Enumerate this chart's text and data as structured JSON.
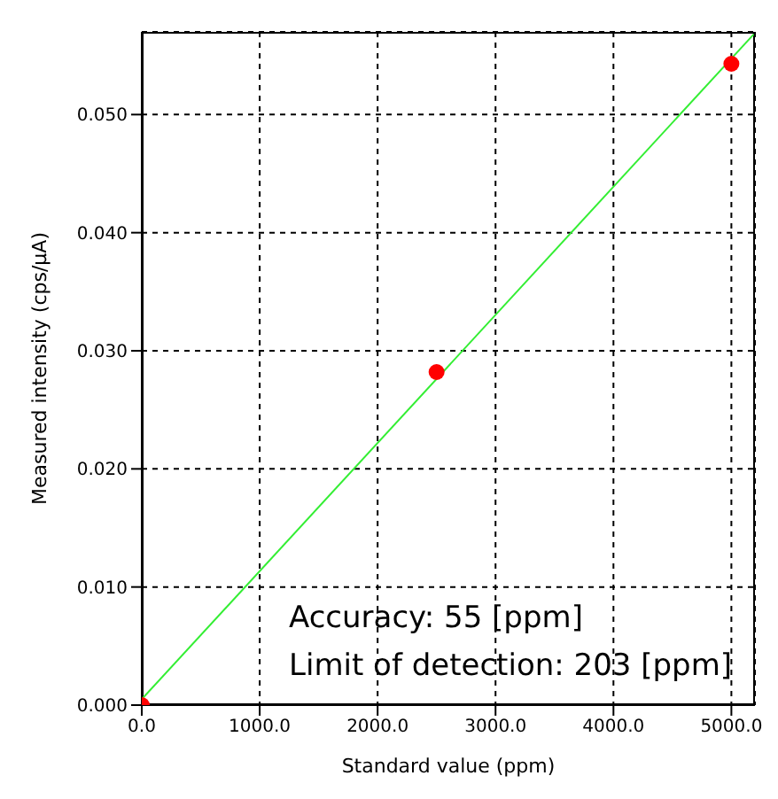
{
  "chart_data": {
    "type": "scatter",
    "xlabel": "Standard value (ppm)",
    "ylabel": "Measured intensity (cps/μA)",
    "series": [
      {
        "color": "#ff0000",
        "x": [
          0,
          2500,
          5000
        ],
        "values": [
          0,
          0.0282,
          0.0543
        ],
        "marker": "circle"
      },
      {
        "type": "line",
        "color": "#33ee33",
        "x": [
          0,
          5190
        ],
        "values": [
          0.0005,
          0.0568
        ],
        "marker": "none"
      }
    ],
    "xlim": [
      0,
      5200
    ],
    "xticks": [
      {
        "value": 0,
        "label": "0.0"
      },
      {
        "value": 1000,
        "label": "1000.0"
      },
      {
        "value": 2000,
        "label": "2000.0"
      },
      {
        "value": 3000,
        "label": "3000.0"
      },
      {
        "value": 4000,
        "label": "4000.0"
      },
      {
        "value": 5000,
        "label": "5000.0"
      }
    ],
    "ylim": [
      0,
      0.057
    ],
    "yticks": [
      {
        "value": 0,
        "label": "0.000"
      },
      {
        "value": 0.01,
        "label": "0.010"
      },
      {
        "value": 0.02,
        "label": "0.020"
      },
      {
        "value": 0.03,
        "label": "0.030"
      },
      {
        "value": 0.04,
        "label": "0.040"
      },
      {
        "value": 0.05,
        "label": "0.050"
      }
    ],
    "grid": true,
    "annotations": [
      "Accuracy: 55 [ppm]",
      "Limit of detection: 203 [ppm]"
    ]
  }
}
